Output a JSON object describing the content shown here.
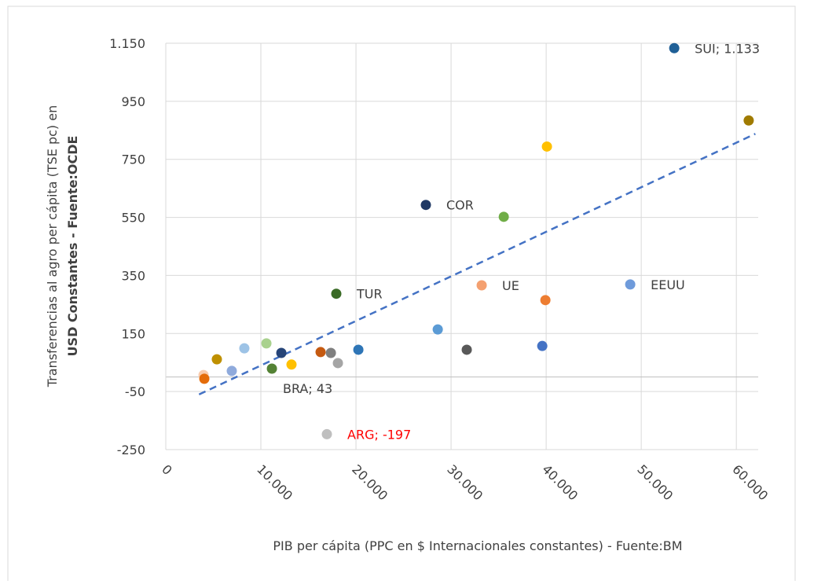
{
  "chart_data": {
    "type": "scatter",
    "x_label": "PIB per cápita (PPC en $ Internacionales constantes) -  Fuente:BM",
    "y_label": [
      "Transferencias al agro per cápita (TSE pc) en",
      "USD Constantes - Fuente:OCDE"
    ],
    "xlim": [
      0,
      62300
    ],
    "ylim": [
      -250,
      1150
    ],
    "xticks": [
      0,
      {
        "value": 10000,
        "label": "10.000"
      },
      {
        "value": 20000,
        "label": "20.000"
      },
      {
        "value": 30000,
        "label": "30.000"
      },
      {
        "value": 40000,
        "label": "40.000"
      },
      {
        "value": 50000,
        "label": "50.000"
      },
      {
        "value": 60000,
        "label": "60.000"
      }
    ],
    "yticks": [
      -250,
      -50,
      150,
      350,
      550,
      750,
      950,
      {
        "value": 1150,
        "label": "1.150"
      }
    ],
    "grid": true,
    "x": [
      53470,
      61300,
      40080,
      27350,
      35540,
      33220,
      39920,
      48840,
      17930,
      28600,
      31650,
      39590,
      20250,
      16280,
      17360,
      18100,
      12150,
      10580,
      8260,
      11160,
      13220,
      5370,
      6940,
      3970,
      4050,
      16940
    ],
    "y": [
      1133,
      884,
      794,
      593,
      552,
      316,
      265,
      319,
      287,
      164,
      94,
      107,
      94,
      86,
      83,
      48,
      83,
      116,
      99,
      29,
      43,
      61,
      21,
      7,
      -6,
      -197
    ],
    "colors": [
      "#1f5f96",
      "#a07b00",
      "#ffc000",
      "#1f3864",
      "#70ad47",
      "#f4a070",
      "#ed7d31",
      "#6f9bdb",
      "#3a6b26",
      "#5b9bd5",
      "#595959",
      "#4472c4",
      "#2e75b6",
      "#c55a11",
      "#7f7f7f",
      "#a5a5a5",
      "#264478",
      "#a9d18e",
      "#9dc3e6",
      "#548235",
      "#ffc000",
      "#bf9000",
      "#8faadc",
      "#f8cbad",
      "#e46c0a",
      "#bfbfbf"
    ],
    "point_labels": [
      "SUI; 1.133",
      null,
      null,
      "COR",
      null,
      "UE",
      null,
      "EEUU",
      "TUR",
      null,
      null,
      null,
      null,
      null,
      null,
      null,
      null,
      null,
      null,
      null,
      "BRA; 43",
      null,
      null,
      null,
      null,
      "ARG; -197"
    ],
    "point_label_colors": [
      "#404040",
      null,
      null,
      "#404040",
      null,
      "#404040",
      null,
      "#404040",
      "#404040",
      null,
      null,
      null,
      null,
      null,
      null,
      null,
      null,
      null,
      null,
      null,
      "#404040",
      null,
      null,
      null,
      null,
      "#ff0000"
    ],
    "trendline": {
      "color": "#4472c4",
      "x": [
        3500,
        62000
      ],
      "y": [
        -60,
        838
      ]
    }
  }
}
